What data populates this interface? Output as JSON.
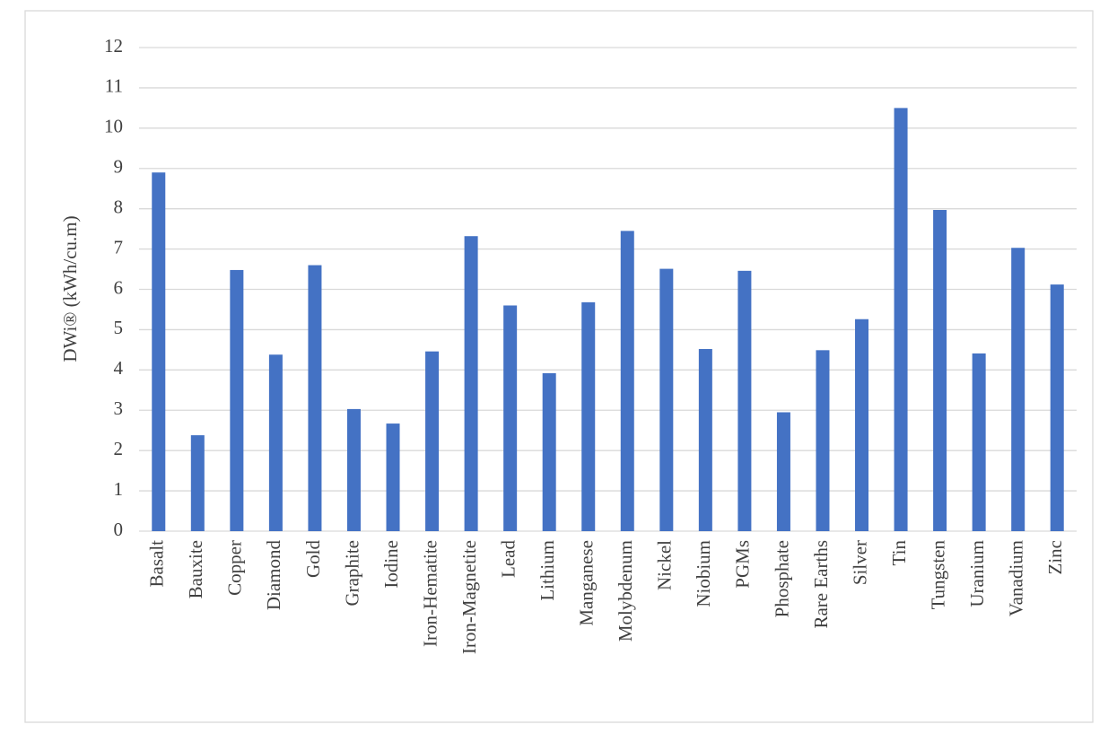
{
  "chart_data": {
    "type": "bar",
    "ylabel": "DWi® (kWh/cu.m)",
    "categories": [
      "Basalt",
      "Bauxite",
      "Copper",
      "Diamond",
      "Gold",
      "Graphite",
      "Iodine",
      "Iron-Hematite",
      "Iron-Magnetite",
      "Lead",
      "Lithium",
      "Manganese",
      "Molybdenum",
      "Nickel",
      "Niobium",
      "PGMs",
      "Phosphate",
      "Rare Earths",
      "Silver",
      "Tin",
      "Tungsten",
      "Uranium",
      "Vanadium",
      "Zinc"
    ],
    "values": [
      8.9,
      2.38,
      6.48,
      4.38,
      6.6,
      3.03,
      2.67,
      4.46,
      7.32,
      5.6,
      3.92,
      5.68,
      7.45,
      6.51,
      4.52,
      6.46,
      2.95,
      4.49,
      5.26,
      10.5,
      7.97,
      4.41,
      7.03,
      6.12
    ],
    "color": "#4472c4",
    "ylim": [
      0,
      12
    ],
    "yticks": [
      0,
      1,
      2,
      3,
      4,
      5,
      6,
      7,
      8,
      9,
      10,
      11,
      12
    ],
    "grid": true
  }
}
